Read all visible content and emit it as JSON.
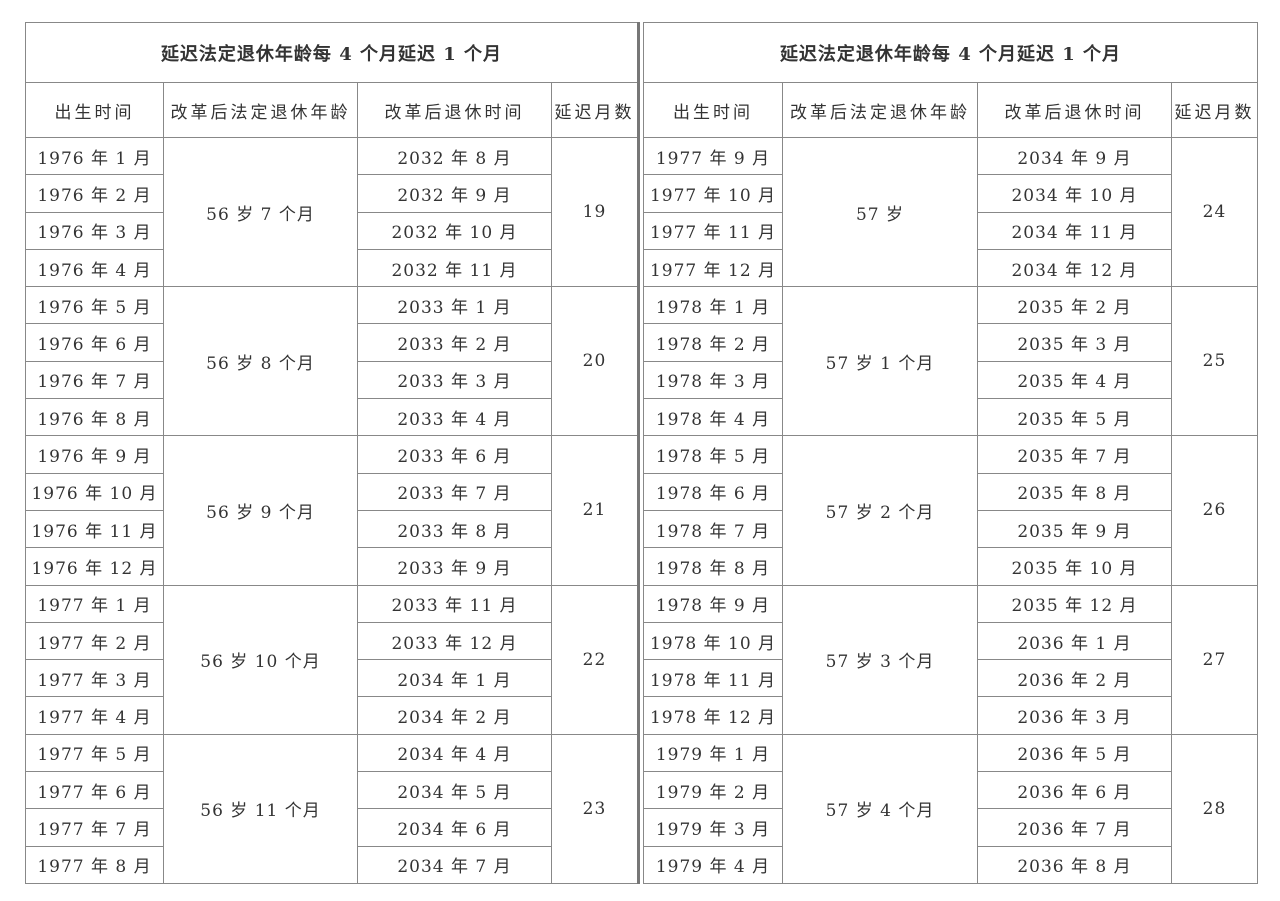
{
  "tables": [
    {
      "title": "延迟法定退休年龄每 4 个月延迟 1 个月",
      "headers": [
        "出生时间",
        "改革后法定退休年龄",
        "改革后退休时间",
        "延迟月数"
      ],
      "groups": [
        {
          "age": "56 岁 7 个月",
          "delay": "19",
          "rows": [
            [
              "1976 年 1 月",
              "2032 年 8 月"
            ],
            [
              "1976 年 2 月",
              "2032 年 9 月"
            ],
            [
              "1976 年 3 月",
              "2032 年 10 月"
            ],
            [
              "1976 年 4 月",
              "2032 年 11 月"
            ]
          ]
        },
        {
          "age": "56 岁 8 个月",
          "delay": "20",
          "rows": [
            [
              "1976 年 5 月",
              "2033 年 1 月"
            ],
            [
              "1976 年 6 月",
              "2033 年 2 月"
            ],
            [
              "1976 年 7 月",
              "2033 年 3 月"
            ],
            [
              "1976 年 8 月",
              "2033 年 4 月"
            ]
          ]
        },
        {
          "age": "56 岁 9 个月",
          "delay": "21",
          "rows": [
            [
              "1976 年 9 月",
              "2033 年 6 月"
            ],
            [
              "1976 年 10 月",
              "2033 年 7 月"
            ],
            [
              "1976 年 11 月",
              "2033 年 8 月"
            ],
            [
              "1976 年 12 月",
              "2033 年 9 月"
            ]
          ]
        },
        {
          "age": "56 岁 10 个月",
          "delay": "22",
          "rows": [
            [
              "1977 年 1 月",
              "2033 年 11 月"
            ],
            [
              "1977 年 2 月",
              "2033 年 12 月"
            ],
            [
              "1977 年 3 月",
              "2034 年 1 月"
            ],
            [
              "1977 年 4 月",
              "2034 年 2 月"
            ]
          ]
        },
        {
          "age": "56 岁 11 个月",
          "delay": "23",
          "rows": [
            [
              "1977 年 5 月",
              "2034 年 4 月"
            ],
            [
              "1977 年 6 月",
              "2034 年 5 月"
            ],
            [
              "1977 年 7 月",
              "2034 年 6 月"
            ],
            [
              "1977 年 8 月",
              "2034 年 7 月"
            ]
          ]
        }
      ]
    },
    {
      "title": "延迟法定退休年龄每 4 个月延迟 1 个月",
      "headers": [
        "出生时间",
        "改革后法定退休年龄",
        "改革后退休时间",
        "延迟月数"
      ],
      "groups": [
        {
          "age": "57 岁",
          "delay": "24",
          "rows": [
            [
              "1977 年 9 月",
              "2034 年 9 月"
            ],
            [
              "1977 年 10 月",
              "2034 年 10 月"
            ],
            [
              "1977 年 11 月",
              "2034 年 11 月"
            ],
            [
              "1977 年 12 月",
              "2034 年 12 月"
            ]
          ]
        },
        {
          "age": "57 岁 1 个月",
          "delay": "25",
          "rows": [
            [
              "1978 年 1 月",
              "2035 年 2 月"
            ],
            [
              "1978 年 2 月",
              "2035 年 3 月"
            ],
            [
              "1978 年 3 月",
              "2035 年 4 月"
            ],
            [
              "1978 年 4 月",
              "2035 年 5 月"
            ]
          ]
        },
        {
          "age": "57 岁 2 个月",
          "delay": "26",
          "rows": [
            [
              "1978 年 5 月",
              "2035 年 7 月"
            ],
            [
              "1978 年 6 月",
              "2035 年 8 月"
            ],
            [
              "1978 年 7 月",
              "2035 年 9 月"
            ],
            [
              "1978 年 8 月",
              "2035 年 10 月"
            ]
          ]
        },
        {
          "age": "57 岁 3 个月",
          "delay": "27",
          "rows": [
            [
              "1978 年 9 月",
              "2035 年 12 月"
            ],
            [
              "1978 年 10 月",
              "2036 年 1 月"
            ],
            [
              "1978 年 11 月",
              "2036 年 2 月"
            ],
            [
              "1978 年 12 月",
              "2036 年 3 月"
            ]
          ]
        },
        {
          "age": "57 岁 4 个月",
          "delay": "28",
          "rows": [
            [
              "1979 年 1 月",
              "2036 年 5 月"
            ],
            [
              "1979 年 2 月",
              "2036 年 6 月"
            ],
            [
              "1979 年 3 月",
              "2036 年 7 月"
            ],
            [
              "1979 年 4 月",
              "2036 年 8 月"
            ]
          ]
        }
      ]
    }
  ]
}
